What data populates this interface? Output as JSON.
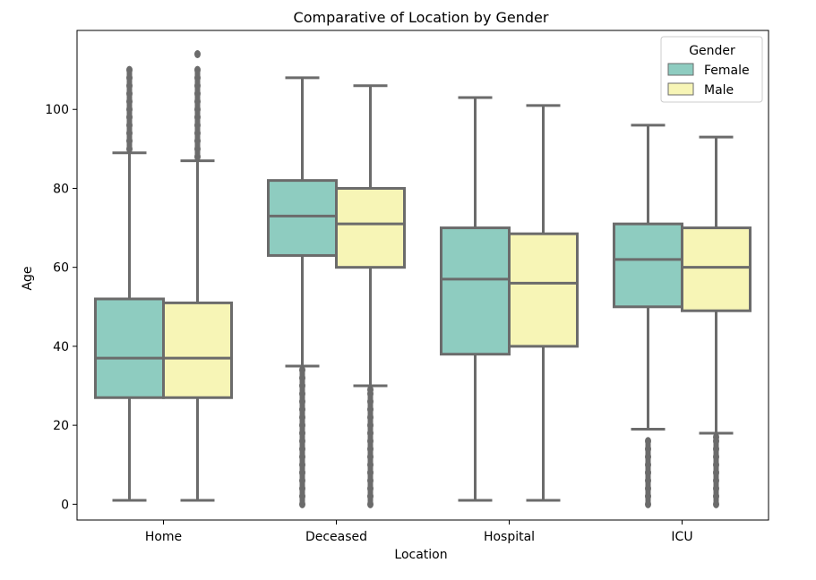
{
  "chart_data": {
    "type": "boxplot",
    "title": "Comparative of Location by Gender",
    "xlabel": "Location",
    "ylabel": "Age",
    "categories": [
      "Home",
      "Deceased",
      "Hospital",
      "ICU"
    ],
    "ylim": [
      -4,
      120
    ],
    "yticks": [
      0,
      20,
      40,
      60,
      80,
      100
    ],
    "grid": false,
    "legend": {
      "title": "Gender",
      "placement": "top-right"
    },
    "series": [
      {
        "name": "Female",
        "color": "#8ECCC0",
        "boxes": [
          {
            "category": "Home",
            "whisker_low": 1,
            "q1": 27,
            "median": 37,
            "q3": 52,
            "whisker_high": 89,
            "outliers_low": [],
            "outliers_high": [
              90,
              92,
              94,
              96,
              98,
              100,
              102,
              104,
              106,
              108,
              110
            ]
          },
          {
            "category": "Deceased",
            "whisker_low": 35,
            "q1": 63,
            "median": 73,
            "q3": 82,
            "whisker_high": 108,
            "outliers_low": [
              0,
              2,
              4,
              6,
              8,
              10,
              12,
              14,
              16,
              18,
              20,
              22,
              24,
              26,
              28,
              30,
              32,
              34
            ],
            "outliers_high": []
          },
          {
            "category": "Hospital",
            "whisker_low": 1,
            "q1": 38,
            "median": 57,
            "q3": 70,
            "whisker_high": 103,
            "outliers_low": [],
            "outliers_high": []
          },
          {
            "category": "ICU",
            "whisker_low": 19,
            "q1": 50,
            "median": 62,
            "q3": 71,
            "whisker_high": 96,
            "outliers_low": [
              0,
              2,
              4,
              6,
              8,
              10,
              12,
              14,
              16
            ],
            "outliers_high": []
          }
        ]
      },
      {
        "name": "Male",
        "color": "#F7F5B6",
        "boxes": [
          {
            "category": "Home",
            "whisker_low": 1,
            "q1": 27,
            "median": 37,
            "q3": 51,
            "whisker_high": 87,
            "outliers_low": [],
            "outliers_high": [
              88,
              90,
              92,
              94,
              96,
              98,
              100,
              102,
              104,
              106,
              108,
              110,
              114
            ]
          },
          {
            "category": "Deceased",
            "whisker_low": 30,
            "q1": 60,
            "median": 71,
            "q3": 80,
            "whisker_high": 106,
            "outliers_low": [
              0,
              2,
              4,
              6,
              8,
              10,
              12,
              14,
              16,
              18,
              20,
              22,
              24,
              26,
              28,
              29
            ],
            "outliers_high": []
          },
          {
            "category": "Hospital",
            "whisker_low": 1,
            "q1": 40,
            "median": 56,
            "q3": 68.5,
            "whisker_high": 101,
            "outliers_low": [],
            "outliers_high": []
          },
          {
            "category": "ICU",
            "whisker_low": 18,
            "q1": 49,
            "median": 60,
            "q3": 70,
            "whisker_high": 93,
            "outliers_low": [
              0,
              2,
              4,
              6,
              8,
              10,
              12,
              14,
              16,
              17
            ],
            "outliers_high": []
          }
        ]
      }
    ],
    "line_color": "#6B6B6B"
  }
}
